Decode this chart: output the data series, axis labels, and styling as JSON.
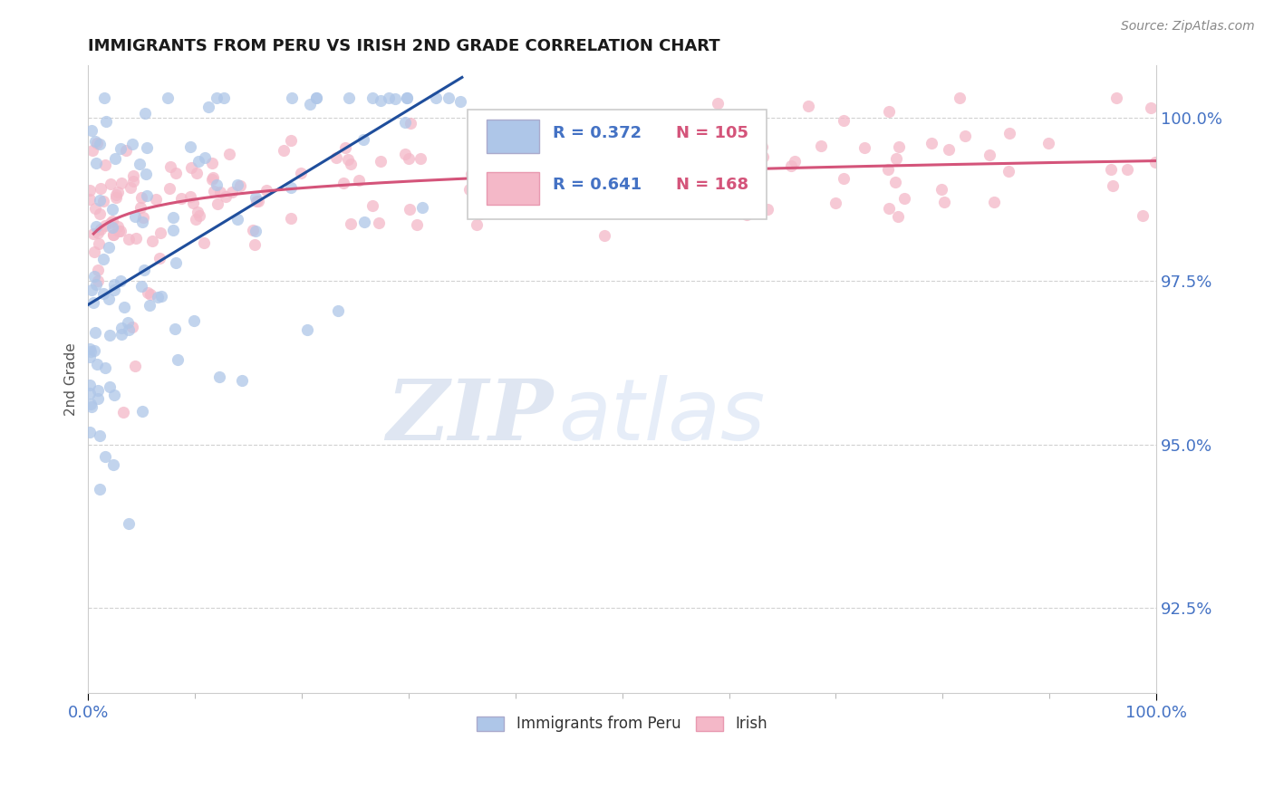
{
  "title": "IMMIGRANTS FROM PERU VS IRISH 2ND GRADE CORRELATION CHART",
  "source_text": "Source: ZipAtlas.com",
  "ylabel": "2nd Grade",
  "x_min": 0.0,
  "x_max": 100.0,
  "y_min": 91.2,
  "y_max": 100.8,
  "ytick_labels": [
    "92.5%",
    "95.0%",
    "97.5%",
    "100.0%"
  ],
  "ytick_values": [
    92.5,
    95.0,
    97.5,
    100.0
  ],
  "xtick_labels": [
    "0.0%",
    "100.0%"
  ],
  "xtick_values": [
    0.0,
    100.0
  ],
  "blue_color": "#aec6e8",
  "blue_line": "#1f4e9c",
  "pink_color": "#f4b8c8",
  "pink_line": "#d4547a",
  "legend_r_blue": "R = 0.372",
  "legend_n_blue": "N = 105",
  "legend_r_pink": "R = 0.641",
  "legend_n_pink": "N = 168",
  "label_blue": "Immigrants from Peru",
  "label_pink": "Irish",
  "watermark_zip": "ZIP",
  "watermark_atlas": "atlas",
  "title_color": "#1a1a1a",
  "legend_text_color": "#4472c4",
  "legend_n_color": "#d4547a",
  "tick_label_color": "#4472c4",
  "source_color": "#888888"
}
